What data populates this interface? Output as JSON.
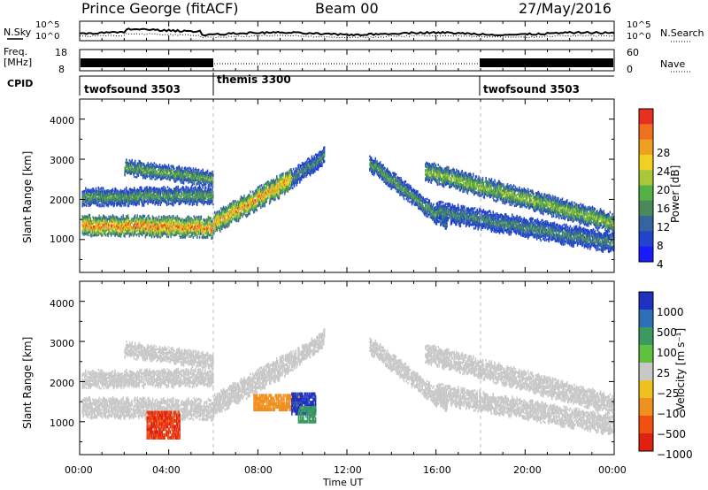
{
  "header": {
    "site": "Prince George (fitACF)",
    "beam": "Beam 00",
    "date": "27/May/2016"
  },
  "noise_panel": {
    "left_label": "N.Sky",
    "right_label": "N.Search",
    "ytick_top": "10^5",
    "ytick_bottom": "10^0"
  },
  "freq_panel": {
    "left_label_top": "Freq.",
    "left_label_bottom": "[MHz]",
    "ytick_top": "18",
    "ytick_bottom": "8",
    "right_label": "Nave",
    "right_tick_top": "60",
    "right_tick_bottom": "0"
  },
  "cpid_panel": {
    "label": "CPID",
    "segments": [
      {
        "name": "twofsound 3503",
        "start_hour": 0,
        "end_hour": 6
      },
      {
        "name": "themis 3300",
        "start_hour": 6,
        "end_hour": 18
      },
      {
        "name": "twofsound 3503",
        "start_hour": 18,
        "end_hour": 24
      }
    ]
  },
  "axes": {
    "xlabel": "Time UT",
    "ylabel": "Slant Range [km]",
    "xticks": [
      "00:00",
      "04:00",
      "08:00",
      "12:00",
      "16:00",
      "20:00",
      "00:00"
    ],
    "yticks": [
      "1000",
      "2000",
      "3000",
      "4000"
    ]
  },
  "colorbars": {
    "power": {
      "label": "Power [dB]",
      "ticks": [
        "4",
        "8",
        "12",
        "16",
        "20",
        "24",
        "28"
      ],
      "colors": [
        "#1a1aff",
        "#2244cc",
        "#3366a0",
        "#4a8a5a",
        "#55b045",
        "#a8c83a",
        "#f0d020",
        "#f0a020",
        "#f07020",
        "#e83020"
      ]
    },
    "velocity": {
      "label": "Velocity [m s⁻¹]",
      "ticks": [
        "1000",
        "500",
        "100",
        "25",
        "−25",
        "−100",
        "−500",
        "−1000"
      ],
      "colors": [
        "#2030c0",
        "#2e6fb8",
        "#3a9a60",
        "#60c040",
        "#c8c8c8",
        "#f0c020",
        "#f09020",
        "#f05010",
        "#e02010"
      ]
    }
  },
  "chart_data": {
    "type": "heatmap",
    "x_unit": "UT hours",
    "x_range": [
      0,
      24
    ],
    "y_unit": "km",
    "y_range": [
      180,
      4500
    ],
    "power_range_db": [
      0,
      30
    ],
    "velocity_range_ms": [
      -1000,
      1000
    ],
    "power_bands": [
      {
        "t_start": 0.1,
        "t_end": 6.0,
        "r_center_start": 1350,
        "r_center_end": 1300,
        "width": 420,
        "peak_db": 28
      },
      {
        "t_start": 0.1,
        "t_end": 6.0,
        "r_center_start": 2050,
        "r_center_end": 2100,
        "width": 350,
        "peak_db": 14
      },
      {
        "t_start": 2.0,
        "t_end": 6.0,
        "r_center_start": 2800,
        "r_center_end": 2500,
        "width": 300,
        "peak_db": 16
      },
      {
        "t_start": 6.0,
        "t_end": 9.5,
        "r_center_start": 1400,
        "r_center_end": 2500,
        "width": 450,
        "peak_db": 26
      },
      {
        "t_start": 9.5,
        "t_end": 11.0,
        "r_center_start": 2500,
        "r_center_end": 3100,
        "width": 350,
        "peak_db": 12
      },
      {
        "t_start": 13.0,
        "t_end": 16.5,
        "r_center_start": 2900,
        "r_center_end": 1400,
        "width": 350,
        "peak_db": 14
      },
      {
        "t_start": 15.5,
        "t_end": 24.0,
        "r_center_start": 2700,
        "r_center_end": 1400,
        "width": 400,
        "peak_db": 18
      },
      {
        "t_start": 16.0,
        "t_end": 24.0,
        "r_center_start": 1700,
        "r_center_end": 900,
        "width": 400,
        "peak_db": 12
      }
    ],
    "velocity_patches": [
      {
        "t_start": 3.0,
        "t_end": 4.5,
        "r_start": 600,
        "r_end": 1300,
        "velocity": -800
      },
      {
        "t_start": 7.8,
        "t_end": 10.0,
        "r_start": 1300,
        "r_end": 1700,
        "velocity": -300
      },
      {
        "t_start": 9.5,
        "t_end": 10.6,
        "r_start": 1200,
        "r_end": 1700,
        "velocity": 900
      },
      {
        "t_start": 9.8,
        "t_end": 10.6,
        "r_start": 1000,
        "r_end": 1400,
        "velocity": 150
      }
    ]
  }
}
